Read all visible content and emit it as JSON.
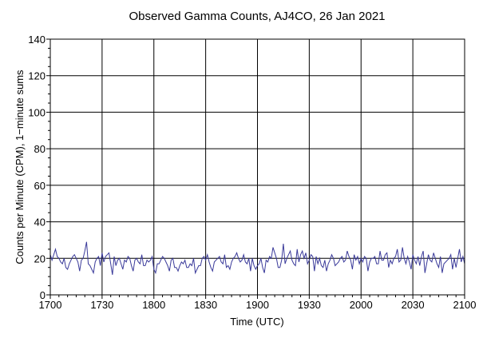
{
  "chart_data": {
    "type": "line",
    "title": "Observed Gamma Counts, AJ4CO, 26 Jan 2021",
    "xlabel": "Time (UTC)",
    "ylabel": "Counts per Minute (CPM), 1−minute sums",
    "x_tick_labels": [
      "1700",
      "1730",
      "1800",
      "1830",
      "1900",
      "1930",
      "2000",
      "2030",
      "2100"
    ],
    "y_tick_labels": [
      "0",
      "20",
      "40",
      "60",
      "80",
      "100",
      "120",
      "140"
    ],
    "xlim_minutes": [
      0,
      240
    ],
    "ylim": [
      0,
      140
    ],
    "grid": true,
    "line_color": "#3a3a9a",
    "series": [
      {
        "values": [
          22,
          19,
          22,
          25,
          21,
          20,
          18,
          17,
          20,
          15,
          14,
          17,
          19,
          21,
          22,
          20,
          18,
          13,
          19,
          20,
          24,
          29,
          17,
          16,
          14,
          12,
          18,
          20,
          21,
          16,
          23,
          18,
          21,
          22,
          23,
          17,
          11,
          21,
          16,
          19,
          20,
          17,
          14,
          19,
          18,
          21,
          20,
          16,
          13,
          19,
          20,
          18,
          17,
          22,
          16,
          16,
          19,
          18,
          19,
          21,
          14,
          12,
          17,
          17,
          19,
          21,
          20,
          18,
          16,
          13,
          19,
          20,
          15,
          15,
          13,
          16,
          18,
          17,
          19,
          15,
          15,
          17,
          16,
          20,
          12,
          14,
          16,
          16,
          20,
          21,
          19,
          22,
          18,
          15,
          13,
          18,
          19,
          20,
          21,
          18,
          17,
          22,
          15,
          16,
          14,
          18,
          20,
          21,
          23,
          20,
          18,
          19,
          22,
          18,
          17,
          20,
          13,
          20,
          16,
          14,
          16,
          17,
          20,
          15,
          12,
          19,
          18,
          21,
          20,
          26,
          23,
          20,
          15,
          15,
          19,
          28,
          17,
          20,
          22,
          24,
          19,
          17,
          16,
          25,
          18,
          22,
          24,
          20,
          23,
          17,
          19,
          22,
          21,
          13,
          21,
          17,
          20,
          16,
          15,
          19,
          13,
          17,
          19,
          22,
          20,
          16,
          17,
          18,
          20,
          21,
          18,
          19,
          24,
          21,
          19,
          14,
          22,
          19,
          21,
          17,
          20,
          18,
          21,
          20,
          13,
          18,
          20,
          20,
          21,
          17,
          17,
          24,
          19,
          19,
          22,
          23,
          15,
          19,
          17,
          20,
          21,
          25,
          18,
          19,
          26,
          20,
          17,
          21,
          18,
          14,
          22,
          19,
          17,
          21,
          16,
          21,
          24,
          12,
          17,
          22,
          19,
          18,
          23,
          20,
          17,
          15,
          21,
          12,
          17,
          18,
          19,
          20,
          22,
          14,
          20,
          15,
          20,
          25,
          18,
          21,
          17,
          23,
          19
        ],
        "step_minutes": 1
      }
    ]
  }
}
